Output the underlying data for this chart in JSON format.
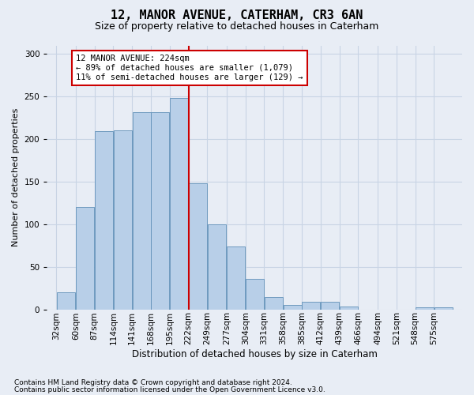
{
  "title": "12, MANOR AVENUE, CATERHAM, CR3 6AN",
  "subtitle": "Size of property relative to detached houses in Caterham",
  "xlabel": "Distribution of detached houses by size in Caterham",
  "ylabel": "Number of detached properties",
  "footnote1": "Contains HM Land Registry data © Crown copyright and database right 2024.",
  "footnote2": "Contains public sector information licensed under the Open Government Licence v3.0.",
  "annotation_title": "12 MANOR AVENUE: 224sqm",
  "annotation_line1": "← 89% of detached houses are smaller (1,079)",
  "annotation_line2": "11% of semi-detached houses are larger (129) →",
  "bar_labels": [
    "32sqm",
    "60sqm",
    "87sqm",
    "114sqm",
    "141sqm",
    "168sqm",
    "195sqm",
    "222sqm",
    "249sqm",
    "277sqm",
    "304sqm",
    "331sqm",
    "358sqm",
    "385sqm",
    "412sqm",
    "439sqm",
    "466sqm",
    "494sqm",
    "521sqm",
    "548sqm",
    "575sqm"
  ],
  "bar_values": [
    20,
    120,
    209,
    210,
    232,
    232,
    248,
    148,
    100,
    74,
    36,
    14,
    5,
    9,
    9,
    3,
    0,
    0,
    0,
    2,
    2
  ],
  "bin_left_edges": [
    32,
    60,
    87,
    114,
    141,
    168,
    195,
    222,
    249,
    277,
    304,
    331,
    358,
    385,
    412,
    439,
    466,
    494,
    521,
    548,
    575
  ],
  "bar_color": "#b8cfe8",
  "bar_edge_color": "#6090b8",
  "vline_color": "#cc0000",
  "vline_bin_index": 7,
  "annotation_box_edge": "#cc0000",
  "annotation_box_face": "#ffffff",
  "grid_color": "#c8d4e4",
  "ylim_max": 310,
  "yticks": [
    0,
    50,
    100,
    150,
    200,
    250,
    300
  ],
  "background_color": "#e8edf5",
  "bin_width": 27,
  "title_fontsize": 11,
  "subtitle_fontsize": 9,
  "ylabel_fontsize": 8,
  "xlabel_fontsize": 8.5,
  "tick_fontsize": 7.5,
  "footnote_fontsize": 6.5,
  "annot_fontsize": 7.5
}
